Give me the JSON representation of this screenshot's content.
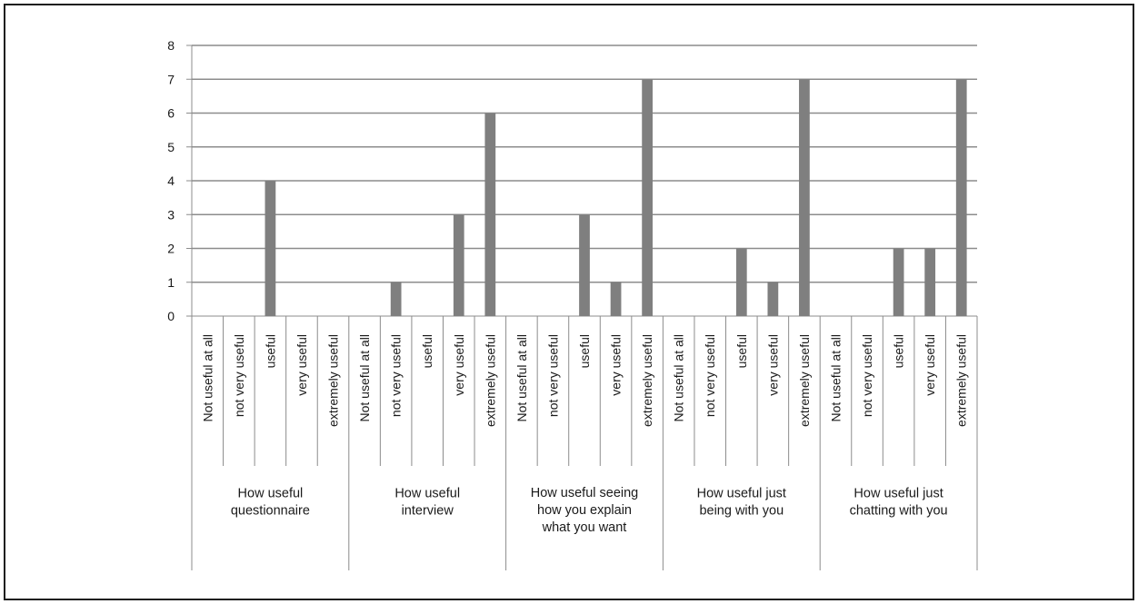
{
  "chart_data": {
    "type": "bar",
    "title": "",
    "xlabel": "",
    "ylabel": "",
    "ylim": [
      0,
      8
    ],
    "yticks": [
      "0",
      "1",
      "2",
      "3",
      "4",
      "5",
      "6",
      "7",
      "8"
    ],
    "grid": true,
    "legend": "none",
    "bar_color": "#7f7f7f",
    "grid_color": "#8c8c8c",
    "groups": [
      {
        "label": [
          "How useful",
          "questionnaire"
        ],
        "categories": [
          "Not useful at all",
          "not very useful",
          "useful",
          "very useful",
          "extremely useful"
        ],
        "values": [
          0,
          0,
          4,
          0,
          0
        ]
      },
      {
        "label": [
          "How useful",
          "interview"
        ],
        "categories": [
          "Not useful at all",
          "not very useful",
          "useful",
          "very useful",
          "extremely useful"
        ],
        "values": [
          0,
          1,
          0,
          3,
          6
        ]
      },
      {
        "label": [
          "How useful seeing",
          "how you explain",
          "what you want"
        ],
        "categories": [
          "Not useful at all",
          "not very useful",
          "useful",
          "very useful",
          "extremely useful"
        ],
        "values": [
          0,
          0,
          3,
          1,
          7
        ]
      },
      {
        "label": [
          "How useful just",
          "being with you"
        ],
        "categories": [
          "Not useful at all",
          "not very useful",
          "useful",
          "very useful",
          "extremely useful"
        ],
        "values": [
          0,
          0,
          2,
          1,
          7
        ]
      },
      {
        "label": [
          "How useful just",
          "chatting  with you"
        ],
        "categories": [
          "Not useful at all",
          "not very useful",
          "useful",
          "very useful",
          "extremely useful"
        ],
        "values": [
          0,
          0,
          2,
          2,
          7
        ]
      }
    ]
  }
}
